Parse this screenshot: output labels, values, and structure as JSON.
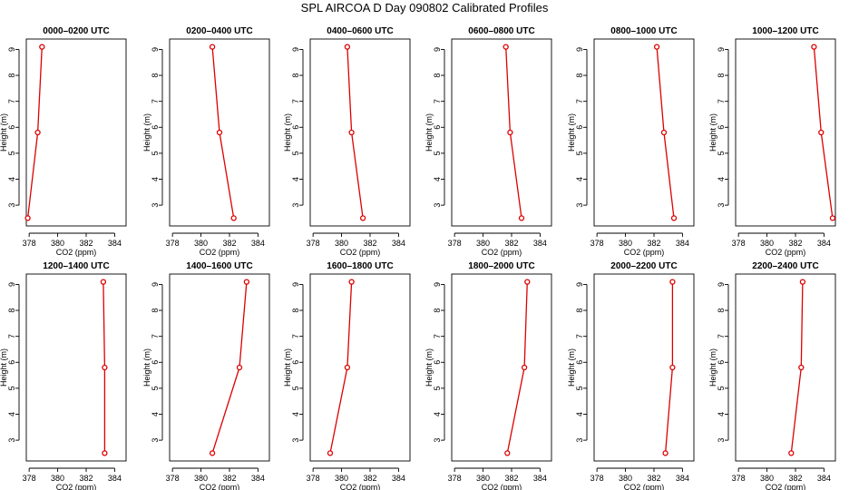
{
  "figure": {
    "title": "SPL AIRCOA D  Day 090802  Calibrated Profiles"
  },
  "colors": {
    "series": "#dd0000",
    "axis": "#000000",
    "background": "#ffffff"
  },
  "chart_data": [
    {
      "type": "line",
      "title": "0000–0200 UTC",
      "xlabel": "CO2 (ppm)",
      "ylabel": "Height (m)",
      "xlim": [
        377.8,
        384.8
      ],
      "ylim": [
        2.2,
        9.4
      ],
      "xticks": [
        378,
        380,
        382,
        384
      ],
      "yticks": [
        3,
        4,
        5,
        6,
        7,
        8,
        9
      ],
      "x": [
        378.9,
        378.6,
        377.9
      ],
      "y": [
        9.1,
        5.8,
        2.5
      ]
    },
    {
      "type": "line",
      "title": "0200–0400 UTC",
      "xlabel": "CO2 (ppm)",
      "ylabel": "Height (m)",
      "xlim": [
        377.8,
        384.8
      ],
      "ylim": [
        2.2,
        9.4
      ],
      "xticks": [
        378,
        380,
        382,
        384
      ],
      "yticks": [
        3,
        4,
        5,
        6,
        7,
        8,
        9
      ],
      "x": [
        380.8,
        381.3,
        382.3
      ],
      "y": [
        9.1,
        5.8,
        2.5
      ]
    },
    {
      "type": "line",
      "title": "0400–0600 UTC",
      "xlabel": "CO2 (ppm)",
      "ylabel": "Height (m)",
      "xlim": [
        377.8,
        384.8
      ],
      "ylim": [
        2.2,
        9.4
      ],
      "xticks": [
        378,
        380,
        382,
        384
      ],
      "yticks": [
        3,
        4,
        5,
        6,
        7,
        8,
        9
      ],
      "x": [
        380.4,
        380.7,
        381.5
      ],
      "y": [
        9.1,
        5.8,
        2.5
      ]
    },
    {
      "type": "line",
      "title": "0600–0800 UTC",
      "xlabel": "CO2 (ppm)",
      "ylabel": "Height (m)",
      "xlim": [
        377.8,
        384.8
      ],
      "ylim": [
        2.2,
        9.4
      ],
      "xticks": [
        378,
        380,
        382,
        384
      ],
      "yticks": [
        3,
        4,
        5,
        6,
        7,
        8,
        9
      ],
      "x": [
        381.6,
        381.9,
        382.7
      ],
      "y": [
        9.1,
        5.8,
        2.5
      ]
    },
    {
      "type": "line",
      "title": "0800–1000 UTC",
      "xlabel": "CO2 (ppm)",
      "ylabel": "Height (m)",
      "xlim": [
        377.8,
        384.8
      ],
      "ylim": [
        2.2,
        9.4
      ],
      "xticks": [
        378,
        380,
        382,
        384
      ],
      "yticks": [
        3,
        4,
        5,
        6,
        7,
        8,
        9
      ],
      "x": [
        382.2,
        382.7,
        383.4
      ],
      "y": [
        9.1,
        5.8,
        2.5
      ]
    },
    {
      "type": "line",
      "title": "1000–1200 UTC",
      "xlabel": "CO2 (ppm)",
      "ylabel": "Height (m)",
      "xlim": [
        377.8,
        384.8
      ],
      "ylim": [
        2.2,
        9.4
      ],
      "xticks": [
        378,
        380,
        382,
        384
      ],
      "yticks": [
        3,
        4,
        5,
        6,
        7,
        8,
        9
      ],
      "x": [
        383.3,
        383.8,
        384.6
      ],
      "y": [
        9.1,
        5.8,
        2.5
      ]
    },
    {
      "type": "line",
      "title": "1200–1400 UTC",
      "xlabel": "CO2 (ppm)",
      "ylabel": "Height (m)",
      "xlim": [
        377.8,
        384.8
      ],
      "ylim": [
        2.2,
        9.4
      ],
      "xticks": [
        378,
        380,
        382,
        384
      ],
      "yticks": [
        3,
        4,
        5,
        6,
        7,
        8,
        9
      ],
      "x": [
        383.2,
        383.3,
        383.3
      ],
      "y": [
        9.1,
        5.8,
        2.5
      ]
    },
    {
      "type": "line",
      "title": "1400–1600 UTC",
      "xlabel": "CO2 (ppm)",
      "ylabel": "Height (m)",
      "xlim": [
        377.8,
        384.8
      ],
      "ylim": [
        2.2,
        9.4
      ],
      "xticks": [
        378,
        380,
        382,
        384
      ],
      "yticks": [
        3,
        4,
        5,
        6,
        7,
        8,
        9
      ],
      "x": [
        383.2,
        382.7,
        380.8
      ],
      "y": [
        9.1,
        5.8,
        2.5
      ]
    },
    {
      "type": "line",
      "title": "1600–1800 UTC",
      "xlabel": "CO2 (ppm)",
      "ylabel": "Height (m)",
      "xlim": [
        377.8,
        384.8
      ],
      "ylim": [
        2.2,
        9.4
      ],
      "xticks": [
        378,
        380,
        382,
        384
      ],
      "yticks": [
        3,
        4,
        5,
        6,
        7,
        8,
        9
      ],
      "x": [
        380.7,
        380.4,
        379.2
      ],
      "y": [
        9.1,
        5.8,
        2.5
      ]
    },
    {
      "type": "line",
      "title": "1800–2000 UTC",
      "xlabel": "CO2 (ppm)",
      "ylabel": "Height (m)",
      "xlim": [
        377.8,
        384.8
      ],
      "ylim": [
        2.2,
        9.4
      ],
      "xticks": [
        378,
        380,
        382,
        384
      ],
      "yticks": [
        3,
        4,
        5,
        6,
        7,
        8,
        9
      ],
      "x": [
        383.1,
        382.9,
        381.7
      ],
      "y": [
        9.1,
        5.8,
        2.5
      ]
    },
    {
      "type": "line",
      "title": "2000–2200 UTC",
      "xlabel": "CO2 (ppm)",
      "ylabel": "Height (m)",
      "xlim": [
        377.8,
        384.8
      ],
      "ylim": [
        2.2,
        9.4
      ],
      "xticks": [
        378,
        380,
        382,
        384
      ],
      "yticks": [
        3,
        4,
        5,
        6,
        7,
        8,
        9
      ],
      "x": [
        383.3,
        383.3,
        382.8
      ],
      "y": [
        9.1,
        5.8,
        2.5
      ]
    },
    {
      "type": "line",
      "title": "2200–2400 UTC",
      "xlabel": "CO2 (ppm)",
      "ylabel": "Height (m)",
      "xlim": [
        377.8,
        384.8
      ],
      "ylim": [
        2.2,
        9.4
      ],
      "xticks": [
        378,
        380,
        382,
        384
      ],
      "yticks": [
        3,
        4,
        5,
        6,
        7,
        8,
        9
      ],
      "x": [
        382.5,
        382.4,
        381.7
      ],
      "y": [
        9.1,
        5.8,
        2.5
      ]
    }
  ]
}
